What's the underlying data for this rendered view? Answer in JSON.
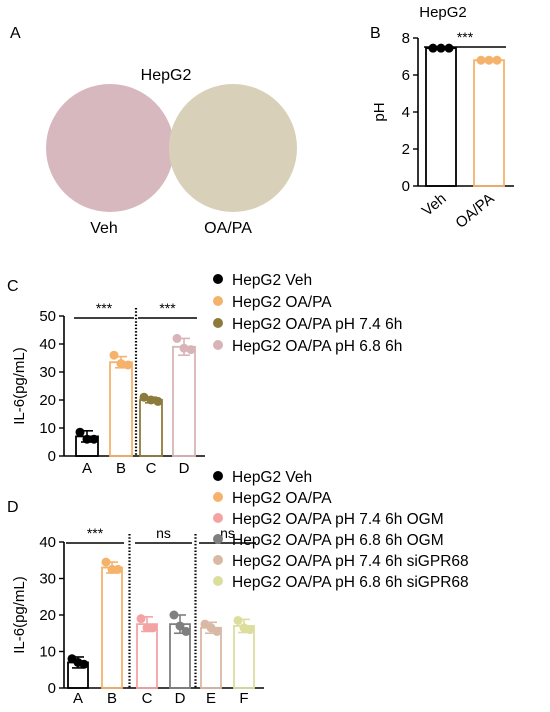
{
  "colors": {
    "black": "#000000",
    "orange": "#F5B26B",
    "olive": "#8C7B3A",
    "pink": "#D8B4B8",
    "salmon": "#F4A3A3",
    "gray": "#7F7F7F",
    "tan": "#D9B8A6",
    "lime": "#DCDE9E",
    "circle_veh": "#D8B8BF",
    "circle_oapa": "#D9D0B9"
  },
  "panel_a": {
    "letter": "A",
    "title": "HepG2",
    "circles": [
      {
        "label": "Veh",
        "color": "#D8B8BF"
      },
      {
        "label": "OA/PA",
        "color": "#D9D0B9"
      }
    ]
  },
  "chart_data": [
    {
      "panel": "B",
      "type": "bar",
      "title": "HepG2",
      "xlabel": "",
      "ylabel": "pH",
      "ylim": [
        0,
        8
      ],
      "yticks": [
        "0",
        "2",
        "4",
        "6",
        "8"
      ],
      "categories": [
        "Veh",
        "OA/PA"
      ],
      "values": [
        7.45,
        6.8
      ],
      "errors": [
        0.05,
        0.05
      ],
      "colors": [
        "#000000",
        "#F5B26B"
      ],
      "points": [
        [
          7.45,
          7.45,
          7.45
        ],
        [
          6.8,
          6.8,
          6.8
        ]
      ],
      "significance": [
        {
          "from": 0,
          "to": 1,
          "label": "***"
        }
      ]
    },
    {
      "panel": "C",
      "type": "bar",
      "title": "",
      "xlabel": "",
      "ylabel": "IL-6(pg/mL)",
      "ylim": [
        0,
        50
      ],
      "yticks": [
        "0",
        "10",
        "20",
        "30",
        "40",
        "50"
      ],
      "categories": [
        "A",
        "B",
        "C",
        "D"
      ],
      "values": [
        7,
        33.5,
        20,
        39
      ],
      "errors": [
        2,
        2,
        1,
        3
      ],
      "colors": [
        "#000000",
        "#F5B26B",
        "#8C7B3A",
        "#D8B4B8"
      ],
      "points": [
        [
          8.5,
          6,
          6
        ],
        [
          36,
          32.5,
          33
        ],
        [
          21,
          19.5,
          20
        ],
        [
          42,
          38,
          38.5
        ]
      ],
      "separators_after": [
        1
      ],
      "significance": [
        {
          "from": 0,
          "to": 1,
          "label": "***"
        },
        {
          "from": 2,
          "to": 3,
          "label": "***"
        }
      ],
      "legend": [
        "HepG2 Veh",
        "HepG2 OA/PA",
        "HepG2 OA/PA pH 7.4 6h",
        "HepG2 OA/PA pH 6.8 6h"
      ]
    },
    {
      "panel": "D",
      "type": "bar",
      "title": "",
      "xlabel": "",
      "ylabel": "IL-6(pg/mL)",
      "ylim": [
        0,
        40
      ],
      "yticks": [
        "0",
        "10",
        "20",
        "30",
        "40"
      ],
      "categories": [
        "A",
        "B",
        "C",
        "D",
        "E",
        "F"
      ],
      "values": [
        7,
        33,
        17.5,
        17.5,
        16.5,
        17
      ],
      "errors": [
        1.5,
        1.5,
        2,
        2.5,
        1.5,
        1.8
      ],
      "colors": [
        "#000000",
        "#F5B26B",
        "#F4A3A3",
        "#7F7F7F",
        "#D9B8A6",
        "#DCDE9E"
      ],
      "points": [
        [
          8,
          6.5,
          7
        ],
        [
          34.5,
          32.5,
          32.5
        ],
        [
          19,
          16.5,
          16.5
        ],
        [
          20,
          15.5,
          17
        ],
        [
          17.5,
          15.5,
          16.5
        ],
        [
          18.5,
          16,
          16.5
        ]
      ],
      "separators_after": [
        1,
        3
      ],
      "significance": [
        {
          "from": 0,
          "to": 1,
          "label": "***"
        },
        {
          "from": 2,
          "to": 3,
          "label": "ns"
        },
        {
          "from": 4,
          "to": 5,
          "label": "ns"
        }
      ],
      "legend": [
        "HepG2 Veh",
        "HepG2 OA/PA",
        "HepG2 OA/PA pH 7.4 6h OGM",
        "HepG2 OA/PA pH 6.8 6h OGM",
        "HepG2 OA/PA pH 7.4 6h siGPR68",
        "HepG2 OA/PA pH 6.8 6h siGPR68"
      ]
    }
  ]
}
